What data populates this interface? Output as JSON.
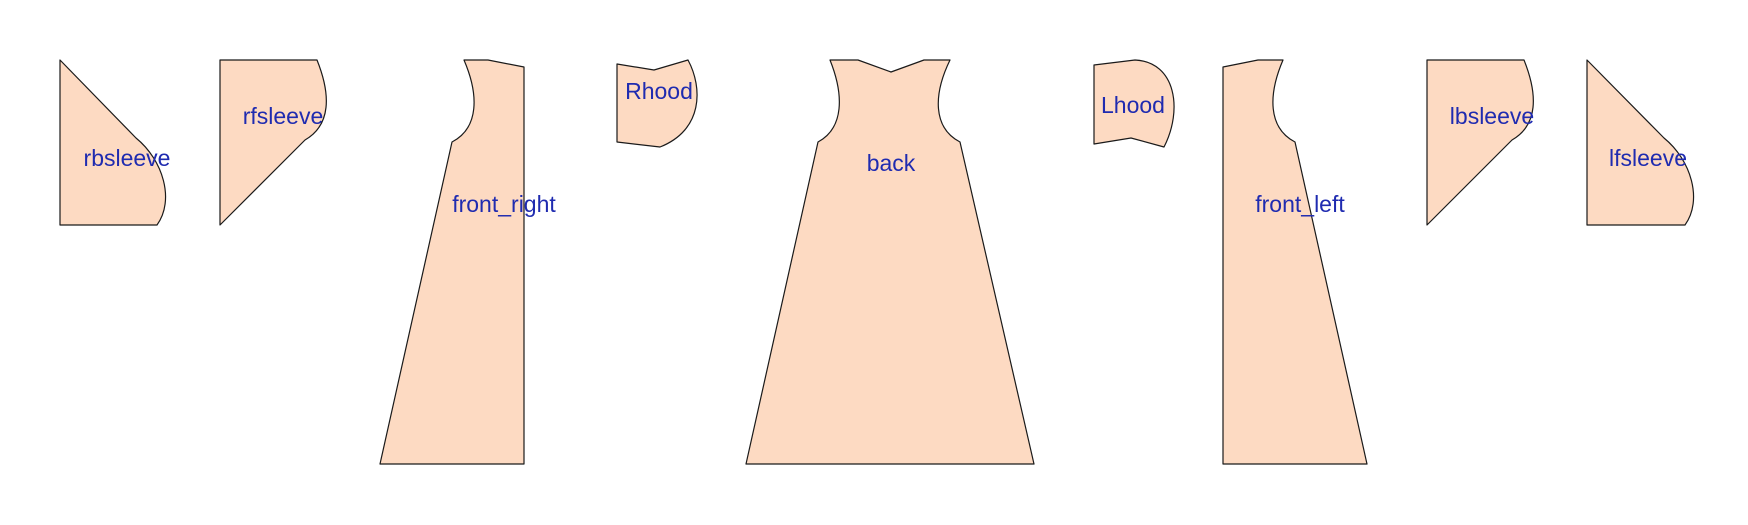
{
  "diagram": {
    "background_color": "#ffffff",
    "piece_fill_color": "#fddac2",
    "outline_color": "#1a1a1a",
    "label_color": "#1f2bb0",
    "pieces": [
      {
        "id": "rbsleeve",
        "label": "rbsleeve"
      },
      {
        "id": "rfsleeve",
        "label": "rfsleeve"
      },
      {
        "id": "front_right",
        "label": "front_right"
      },
      {
        "id": "rhood",
        "label": "Rhood"
      },
      {
        "id": "back",
        "label": "back"
      },
      {
        "id": "lhood",
        "label": "Lhood"
      },
      {
        "id": "front_left",
        "label": "front_left"
      },
      {
        "id": "lbsleeve",
        "label": "lbsleeve"
      },
      {
        "id": "lfsleeve",
        "label": "lfsleeve"
      }
    ]
  }
}
